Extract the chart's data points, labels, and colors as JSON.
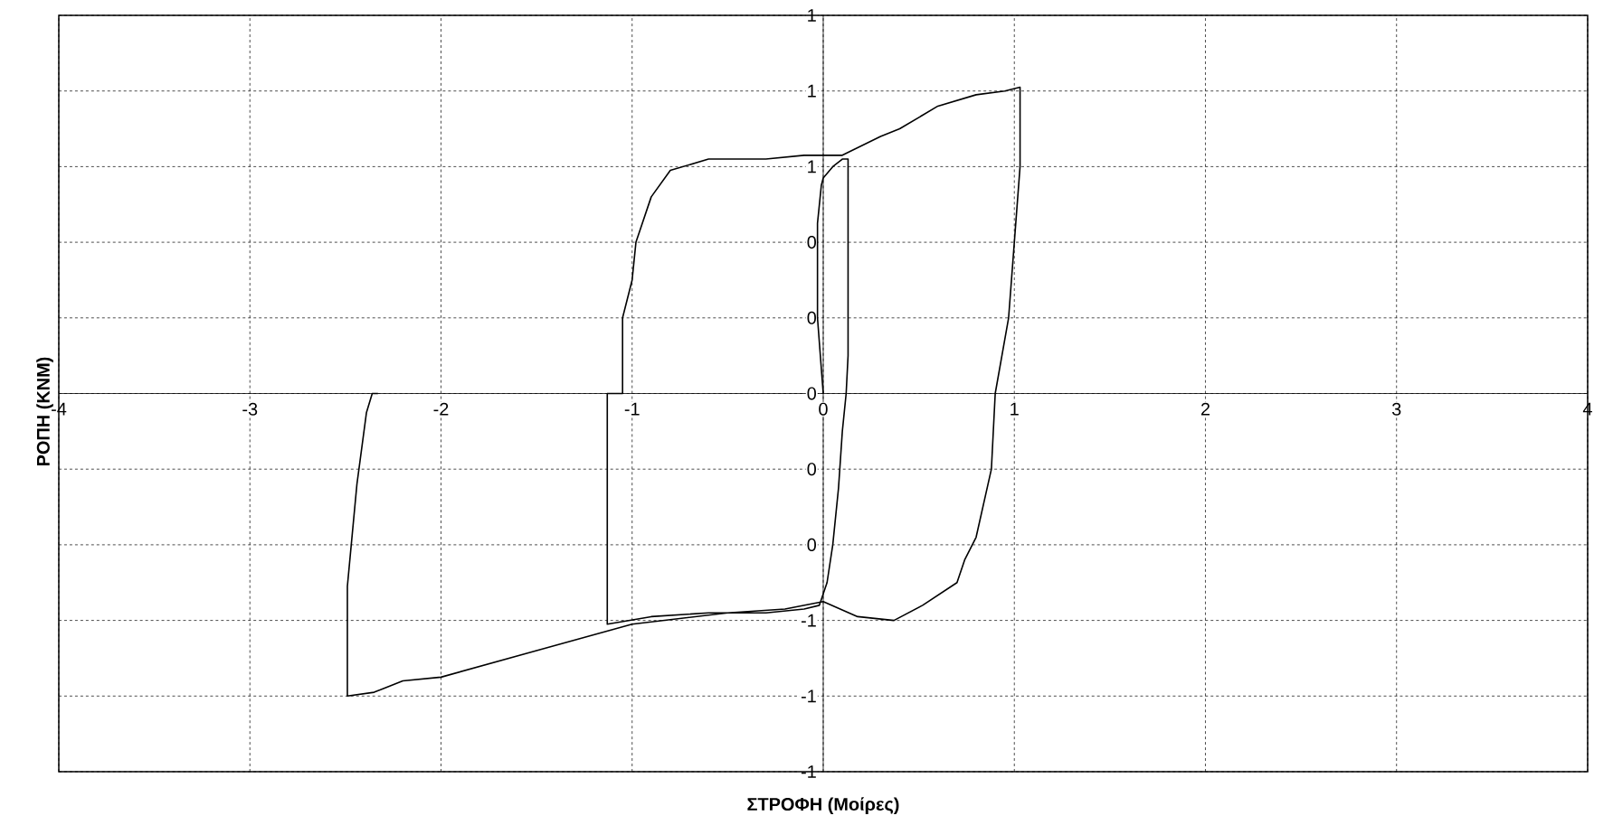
{
  "chart_data": {
    "type": "line",
    "xlabel": "ΣΤΡΟΦΗ (Μοίρες)",
    "ylabel": "ΡΟΠΗ (KNM)",
    "xlim": [
      -4,
      4
    ],
    "ylim": [
      -1,
      1
    ],
    "xticks": [
      -4,
      -3,
      -2,
      -1,
      0,
      1,
      2,
      3,
      4
    ],
    "yticks": [
      {
        "value": -1,
        "label": "-1"
      },
      {
        "value": -0.8,
        "label": "-1"
      },
      {
        "value": -0.6,
        "label": "-1"
      },
      {
        "value": -0.4,
        "label": "0"
      },
      {
        "value": -0.2,
        "label": "0"
      },
      {
        "value": 0,
        "label": "0"
      },
      {
        "value": 0.2,
        "label": "0"
      },
      {
        "value": 0.4,
        "label": "0"
      },
      {
        "value": 0.6,
        "label": "1"
      },
      {
        "value": 0.8,
        "label": "1"
      },
      {
        "value": 1,
        "label": "1"
      }
    ],
    "grid": true,
    "line_style": "solid",
    "marker": "none",
    "x": [
      0,
      -0.03,
      -0.03,
      -0.01,
      0,
      0.05,
      0.1,
      0.13,
      0.13,
      0.12,
      0.1,
      0.08,
      0.05,
      0.02,
      -0.02,
      -0.1,
      -0.3,
      -0.6,
      -0.9,
      -1.13,
      -1.13,
      -1.05,
      -1.05,
      -1.0,
      -0.98,
      -0.9,
      -0.8,
      -0.6,
      -0.3,
      -0.1,
      0.1,
      0.3,
      0.4,
      0.6,
      0.8,
      0.95,
      1.03,
      1.03,
      1.0,
      0.97,
      0.9,
      0.88,
      0.8,
      0.74,
      0.7,
      0.52,
      0.37,
      0.18,
      0,
      -0.2,
      -0.5,
      -1.0,
      -1.5,
      -2.0,
      -2.2,
      -2.35,
      -2.49,
      -2.49,
      -2.44,
      -2.39,
      -2.36,
      -2.33
    ],
    "series": [
      {
        "color": "#000000",
        "values": [
          0,
          0.2,
          0.45,
          0.55,
          0.57,
          0.6,
          0.62,
          0.62,
          0.1,
          0,
          -0.1,
          -0.25,
          -0.4,
          -0.5,
          -0.56,
          -0.57,
          -0.58,
          -0.58,
          -0.59,
          -0.61,
          0,
          0,
          0.2,
          0.3,
          0.4,
          0.52,
          0.59,
          0.62,
          0.62,
          0.63,
          0.63,
          0.68,
          0.7,
          0.76,
          0.79,
          0.8,
          0.81,
          0.6,
          0.4,
          0.2,
          0,
          -0.2,
          -0.38,
          -0.44,
          -0.5,
          -0.56,
          -0.6,
          -0.59,
          -0.55,
          -0.57,
          -0.58,
          -0.61,
          -0.68,
          -0.75,
          -0.76,
          -0.79,
          -0.8,
          -0.51,
          -0.24,
          -0.05,
          0,
          0
        ]
      }
    ]
  }
}
